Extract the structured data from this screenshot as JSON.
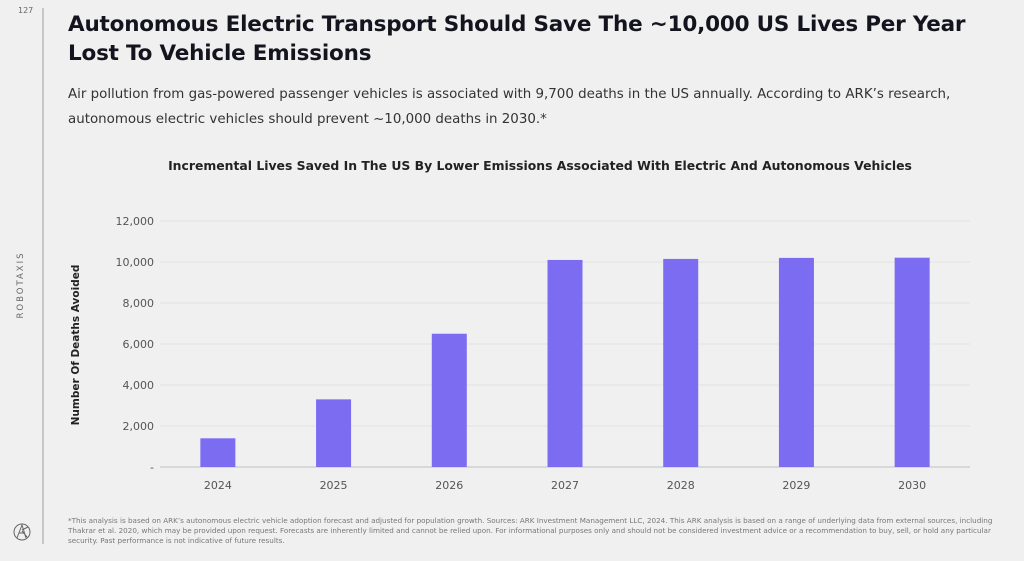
{
  "page": {
    "page_number": "127",
    "section_label": "ROBOTAXIS",
    "logo_icon": "ark-logo-icon",
    "title": "Autonomous Electric Transport Should Save The ~10,000 US Lives Per Year Lost To Vehicle Emissions",
    "subtitle": "Air pollution from gas-powered passenger vehicles is associated with 9,700 deaths in the US annually. According to ARK’s research, autonomous electric vehicles should prevent ~10,000 deaths in 2030.*",
    "footnote": "*This analysis is based on ARK’s autonomous electric vehicle adoption forecast and adjusted for population growth. Sources: ARK Investment Management LLC, 2024. This ARK analysis is based on a range of underlying data from external sources, including Thakrar et al. 2020, which may be provided upon request. Forecasts are inherently limited and cannot be relied upon. For informational purposes only and should not be considered investment advice or a recommendation to buy, sell, or hold any particular security. Past performance is not indicative of future results."
  },
  "colors": {
    "bar": "#7b6cf2",
    "gridline": "#e2e2e2",
    "axis": "#cfcfcf",
    "background": "#f0f0f0"
  },
  "chart_data": {
    "type": "bar",
    "title": "Incremental Lives Saved In The US By Lower Emissions Associated With Electric And Autonomous Vehicles",
    "xlabel": "",
    "ylabel": "Number Of Deaths Avoided",
    "categories": [
      "2024",
      "2025",
      "2026",
      "2027",
      "2028",
      "2029",
      "2030"
    ],
    "values": [
      1400,
      3300,
      6500,
      10100,
      10150,
      10200,
      10210
    ],
    "ylim": [
      0,
      12000
    ],
    "yticks": [
      0,
      2000,
      4000,
      6000,
      8000,
      10000,
      12000
    ],
    "ytick_labels": [
      "-",
      "2,000",
      "4,000",
      "6,000",
      "8,000",
      "10,000",
      "12,000"
    ],
    "grid": true,
    "legend": "none"
  }
}
